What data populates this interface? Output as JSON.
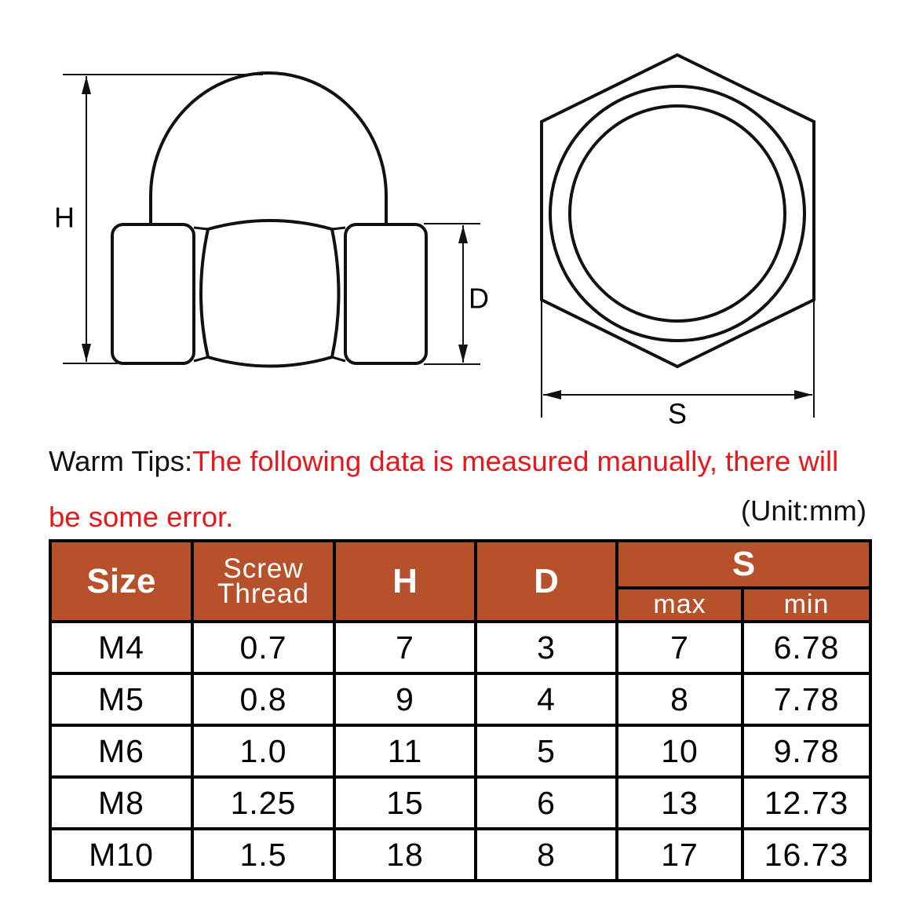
{
  "diagram": {
    "labels": {
      "h": "H",
      "d": "D",
      "s": "S"
    }
  },
  "tips": {
    "prefix": "Warm Tips:",
    "text": "The following data is measured manually, there will be some error.",
    "unit": "(Unit:mm)"
  },
  "table": {
    "header": {
      "size": "Size",
      "thread": "Screw Thread",
      "h": "H",
      "d": "D",
      "s": "S",
      "max": "max",
      "min": "min"
    },
    "rows": [
      [
        "M4",
        "0.7",
        "7",
        "3",
        "7",
        "6.78"
      ],
      [
        "M5",
        "0.8",
        "9",
        "4",
        "8",
        "7.78"
      ],
      [
        "M6",
        "1.0",
        "11",
        "5",
        "10",
        "9.78"
      ],
      [
        "M8",
        "1.25",
        "15",
        "6",
        "13",
        "12.73"
      ],
      [
        "M10",
        "1.5",
        "18",
        "8",
        "17",
        "16.73"
      ]
    ]
  }
}
